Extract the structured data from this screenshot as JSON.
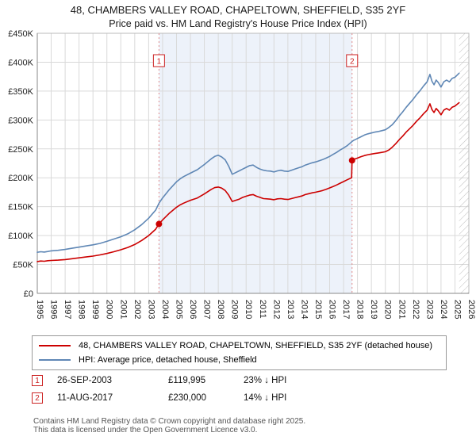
{
  "title": {
    "line1": "48, CHAMBERS VALLEY ROAD, CHAPELTOWN, SHEFFIELD, S35 2YF",
    "line2": "Price paid vs. HM Land Registry's House Price Index (HPI)"
  },
  "chart_data": {
    "type": "line",
    "x_range": [
      1995,
      2026
    ],
    "y_range": [
      0,
      450
    ],
    "grid": true,
    "x_ticks": [
      "1995",
      "1996",
      "1997",
      "1998",
      "1999",
      "2000",
      "2001",
      "2002",
      "2003",
      "2004",
      "2005",
      "2006",
      "2007",
      "2008",
      "2009",
      "2010",
      "2011",
      "2012",
      "2013",
      "2014",
      "2015",
      "2016",
      "2017",
      "2018",
      "2019",
      "2020",
      "2021",
      "2022",
      "2023",
      "2024",
      "2025",
      "2026"
    ],
    "y_ticks": [
      {
        "v": 0,
        "label": "£0"
      },
      {
        "v": 50,
        "label": "£50K"
      },
      {
        "v": 100,
        "label": "£100K"
      },
      {
        "v": 150,
        "label": "£150K"
      },
      {
        "v": 200,
        "label": "£200K"
      },
      {
        "v": 250,
        "label": "£250K"
      },
      {
        "v": 300,
        "label": "£300K"
      },
      {
        "v": 350,
        "label": "£350K"
      },
      {
        "v": 400,
        "label": "£400K"
      },
      {
        "v": 450,
        "label": "£450K"
      }
    ],
    "x": [
      1995,
      1995.25,
      1995.5,
      1995.75,
      1996,
      1996.5,
      1997,
      1997.5,
      1998,
      1998.5,
      1999,
      1999.5,
      2000,
      2000.5,
      2001,
      2001.5,
      2002,
      2002.5,
      2003,
      2003.5,
      2003.74,
      2004,
      2004.5,
      2005,
      2005.25,
      2005.5,
      2006,
      2006.5,
      2007,
      2007.25,
      2007.5,
      2007.75,
      2008,
      2008.25,
      2008.5,
      2008.75,
      2009,
      2009.25,
      2009.5,
      2009.75,
      2010,
      2010.25,
      2010.5,
      2010.75,
      2011,
      2011.25,
      2011.5,
      2011.75,
      2012,
      2012.25,
      2012.5,
      2012.75,
      2013,
      2013.25,
      2013.5,
      2013.75,
      2014,
      2014.25,
      2014.5,
      2014.75,
      2015,
      2015.25,
      2015.5,
      2015.75,
      2016,
      2016.25,
      2016.5,
      2016.75,
      2017,
      2017.25,
      2017.58,
      2017.61,
      2017.75,
      2018,
      2018.25,
      2018.5,
      2018.75,
      2019,
      2019.25,
      2019.5,
      2019.75,
      2020,
      2020.25,
      2020.5,
      2020.75,
      2021,
      2021.25,
      2021.5,
      2021.75,
      2022,
      2022.25,
      2022.5,
      2022.75,
      2023,
      2023.2,
      2023.35,
      2023.5,
      2023.65,
      2023.8,
      2024,
      2024.2,
      2024.4,
      2024.6,
      2024.8,
      2025,
      2025.3
    ],
    "series": [
      {
        "name": "48, CHAMBERS VALLEY ROAD, CHAPELTOWN, SHEFFIELD, S35 2YF (detached house)",
        "color": "#cc0000",
        "values": [
          55,
          56,
          55.5,
          56.5,
          57,
          57.5,
          58.5,
          60,
          61.5,
          63,
          64.5,
          66.5,
          69,
          72,
          75.5,
          79.5,
          84.5,
          91.5,
          100,
          111,
          120,
          127,
          139,
          149,
          153,
          156,
          161,
          165,
          172,
          176,
          180,
          183,
          184,
          182,
          178,
          170,
          159,
          161,
          163,
          166,
          168,
          170,
          171,
          168,
          166,
          164,
          163.5,
          163,
          162,
          163.5,
          164,
          163,
          162.5,
          164,
          165.5,
          167,
          168.5,
          171,
          172.5,
          174,
          175,
          176.5,
          178,
          180,
          182.5,
          185,
          187.5,
          190.5,
          193.5,
          196.5,
          200,
          230,
          232,
          234,
          236.5,
          238.5,
          240,
          241,
          242,
          243,
          244,
          245,
          248,
          253,
          259,
          266,
          272,
          279,
          285,
          291,
          298,
          304,
          311,
          317,
          328,
          318,
          313,
          320,
          316,
          309,
          317,
          320,
          317,
          322,
          324,
          330
        ]
      },
      {
        "name": "HPI: Average price, detached house, Sheffield",
        "color": "#5f87b5",
        "values": [
          71,
          72,
          71.5,
          72.5,
          73.5,
          74.5,
          76,
          78,
          80,
          82,
          84,
          86.5,
          90,
          94,
          98,
          103,
          110,
          119,
          130,
          144,
          156,
          165,
          180,
          193,
          198,
          202,
          208,
          214,
          223,
          228,
          233,
          237,
          239,
          236,
          231,
          220,
          206,
          209,
          212,
          215,
          218,
          221,
          222,
          218,
          215,
          213,
          212,
          211.5,
          210,
          212,
          213,
          211.5,
          211,
          213,
          215,
          217,
          219,
          222,
          224,
          226,
          227.5,
          229.5,
          231.5,
          234,
          237,
          240.5,
          244,
          248,
          251.5,
          255.5,
          262,
          263,
          265,
          268,
          271,
          274,
          276,
          277.5,
          279,
          280,
          281.5,
          283,
          287,
          292,
          299,
          307,
          314,
          322,
          329,
          336,
          344,
          351,
          359,
          366,
          379,
          367,
          361,
          369,
          365,
          357,
          366,
          369,
          366,
          372,
          374,
          381
        ]
      }
    ],
    "sales": [
      {
        "n": "1",
        "year": 2003.74,
        "price": 119.995
      },
      {
        "n": "2",
        "year": 2017.61,
        "price": 230
      }
    ],
    "shaded_region": [
      2003.74,
      2017.61
    ],
    "hatch_start": 2025.3,
    "colors": {
      "grid": "#d9d9d9",
      "frame": "#bbbbbb",
      "axis": "#888888",
      "shade": "#edf2fa",
      "dashed": "#e08c8c",
      "marker_box": "#cc2222",
      "hatch": "#bbbbbb",
      "tick_text": "#222222"
    }
  },
  "legend": {
    "items": [
      {
        "label": "48, CHAMBERS VALLEY ROAD, CHAPELTOWN, SHEFFIELD, S35 2YF (detached house)",
        "color": "#cc0000"
      },
      {
        "label": "HPI: Average price, detached house, Sheffield",
        "color": "#5f87b5"
      }
    ]
  },
  "table": {
    "rows": [
      {
        "marker": "1",
        "date": "26-SEP-2003",
        "price": "£119,995",
        "hpi": "23% ↓ HPI"
      },
      {
        "marker": "2",
        "date": "11-AUG-2017",
        "price": "£230,000",
        "hpi": "14% ↓ HPI"
      }
    ]
  },
  "footer": {
    "line1": "Contains HM Land Registry data © Crown copyright and database right 2025.",
    "line2": "This data is licensed under the Open Government Licence v3.0."
  }
}
